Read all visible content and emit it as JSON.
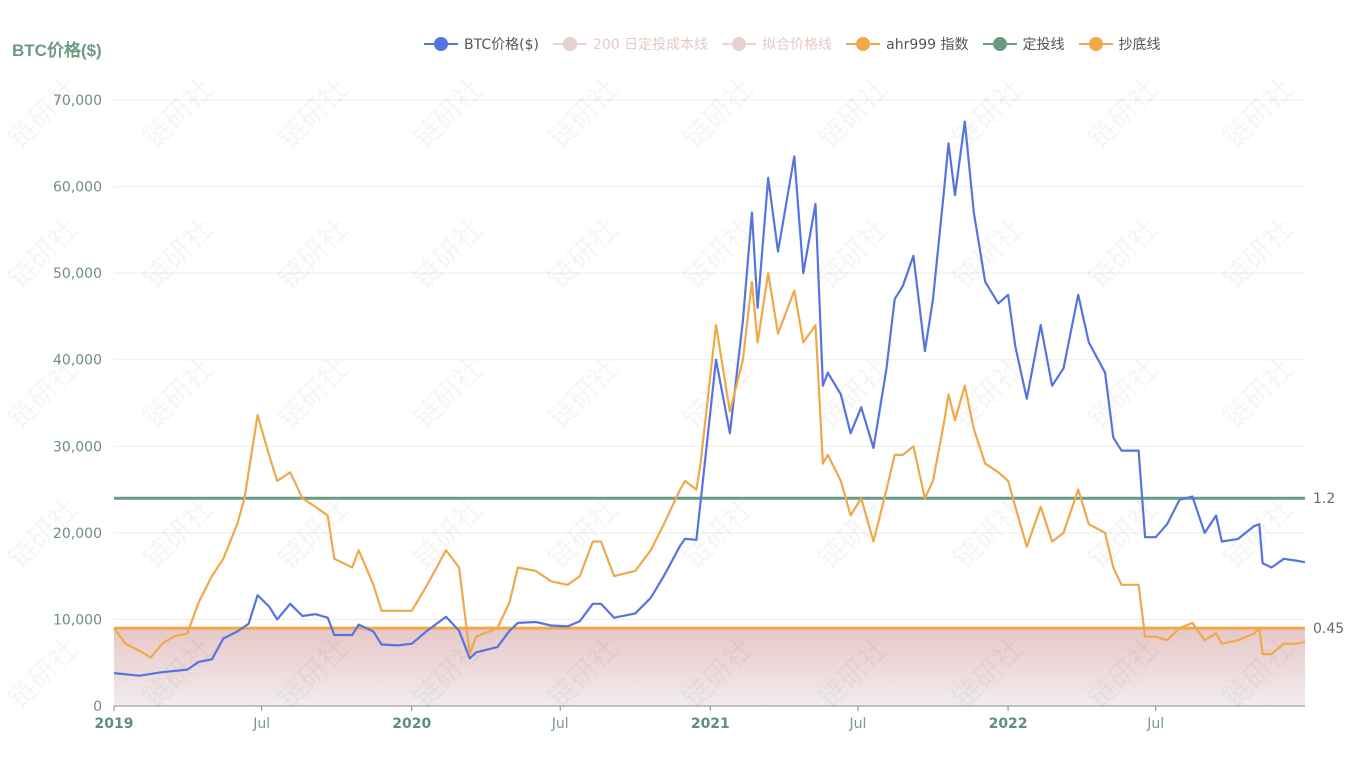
{
  "chart_data": {
    "type": "line",
    "y_axis_title": "BTC价格($)",
    "watermark_text": "链研社",
    "legend": [
      {
        "label": "BTC价格($)",
        "color": "#5574e0",
        "faded": false
      },
      {
        "label": "200 日定投成本线",
        "color": "#e8c7c7",
        "faded": true
      },
      {
        "label": "拟合价格线",
        "color": "#e8c7c7",
        "faded": true
      },
      {
        "label": "ahr999 指数",
        "color": "#f0a94a",
        "faded": false
      },
      {
        "label": "定投线",
        "color": "#6a9a84",
        "faded": false
      },
      {
        "label": "抄底线",
        "color": "#f0a94a",
        "faded": false
      }
    ],
    "x_range": [
      "2019-01-01",
      "2022-12-31"
    ],
    "ylim": [
      0,
      70000
    ],
    "y_ticks": [
      {
        "value": 0,
        "label": "0"
      },
      {
        "value": 10000,
        "label": "10,000"
      },
      {
        "value": 20000,
        "label": "20,000"
      },
      {
        "value": 30000,
        "label": "30,000"
      },
      {
        "value": 40000,
        "label": "40,000"
      },
      {
        "value": 50000,
        "label": "50,000"
      },
      {
        "value": 60000,
        "label": "60,000"
      },
      {
        "value": 70000,
        "label": "70,000"
      }
    ],
    "x_ticks": [
      {
        "date": "2019-01-01",
        "label": "2019",
        "major": true
      },
      {
        "date": "2019-07-01",
        "label": "Jul",
        "major": false
      },
      {
        "date": "2020-01-01",
        "label": "2020",
        "major": true
      },
      {
        "date": "2020-07-01",
        "label": "Jul",
        "major": false
      },
      {
        "date": "2021-01-01",
        "label": "2021",
        "major": true
      },
      {
        "date": "2021-07-01",
        "label": "Jul",
        "major": false
      },
      {
        "date": "2022-01-01",
        "label": "2022",
        "major": true
      },
      {
        "date": "2022-07-01",
        "label": "Jul",
        "major": false
      }
    ],
    "grid": true,
    "series": [
      {
        "name": "BTC价格($)",
        "color": "#5574e0",
        "points": [
          [
            "2019-01-01",
            3800
          ],
          [
            "2019-02-01",
            3500
          ],
          [
            "2019-03-01",
            3900
          ],
          [
            "2019-04-01",
            4200
          ],
          [
            "2019-04-15",
            5100
          ],
          [
            "2019-05-01",
            5400
          ],
          [
            "2019-05-15",
            7800
          ],
          [
            "2019-06-01",
            8600
          ],
          [
            "2019-06-15",
            9500
          ],
          [
            "2019-06-26",
            12800
          ],
          [
            "2019-07-10",
            11500
          ],
          [
            "2019-07-20",
            10000
          ],
          [
            "2019-08-05",
            11800
          ],
          [
            "2019-08-20",
            10400
          ],
          [
            "2019-09-05",
            10600
          ],
          [
            "2019-09-20",
            10200
          ],
          [
            "2019-09-28",
            8200
          ],
          [
            "2019-10-20",
            8200
          ],
          [
            "2019-10-28",
            9400
          ],
          [
            "2019-11-15",
            8600
          ],
          [
            "2019-11-25",
            7100
          ],
          [
            "2019-12-15",
            7000
          ],
          [
            "2020-01-01",
            7200
          ],
          [
            "2020-01-20",
            8700
          ],
          [
            "2020-02-12",
            10300
          ],
          [
            "2020-02-28",
            8700
          ],
          [
            "2020-03-12",
            5500
          ],
          [
            "2020-03-20",
            6200
          ],
          [
            "2020-04-15",
            6800
          ],
          [
            "2020-04-30",
            8700
          ],
          [
            "2020-05-10",
            9600
          ],
          [
            "2020-06-01",
            9700
          ],
          [
            "2020-06-20",
            9300
          ],
          [
            "2020-07-10",
            9200
          ],
          [
            "2020-07-25",
            9800
          ],
          [
            "2020-08-10",
            11800
          ],
          [
            "2020-08-20",
            11800
          ],
          [
            "2020-09-05",
            10200
          ],
          [
            "2020-10-01",
            10700
          ],
          [
            "2020-10-20",
            12500
          ],
          [
            "2020-11-05",
            15000
          ],
          [
            "2020-11-25",
            18500
          ],
          [
            "2020-12-01",
            19300
          ],
          [
            "2020-12-15",
            19200
          ],
          [
            "2020-12-20",
            23500
          ],
          [
            "2021-01-08",
            40000
          ],
          [
            "2021-01-25",
            31500
          ],
          [
            "2021-02-10",
            44500
          ],
          [
            "2021-02-21",
            57000
          ],
          [
            "2021-02-28",
            46000
          ],
          [
            "2021-03-13",
            61000
          ],
          [
            "2021-03-25",
            52500
          ],
          [
            "2021-04-14",
            63500
          ],
          [
            "2021-04-25",
            50000
          ],
          [
            "2021-05-10",
            58000
          ],
          [
            "2021-05-19",
            37000
          ],
          [
            "2021-05-25",
            38500
          ],
          [
            "2021-06-10",
            36000
          ],
          [
            "2021-06-22",
            31500
          ],
          [
            "2021-07-05",
            34500
          ],
          [
            "2021-07-20",
            29800
          ],
          [
            "2021-08-05",
            39000
          ],
          [
            "2021-08-15",
            47000
          ],
          [
            "2021-08-25",
            48500
          ],
          [
            "2021-09-07",
            52000
          ],
          [
            "2021-09-21",
            41000
          ],
          [
            "2021-10-01",
            47000
          ],
          [
            "2021-10-15",
            60000
          ],
          [
            "2021-10-20",
            65000
          ],
          [
            "2021-10-28",
            59000
          ],
          [
            "2021-11-09",
            67500
          ],
          [
            "2021-11-20",
            57000
          ],
          [
            "2021-12-04",
            49000
          ],
          [
            "2021-12-20",
            46500
          ],
          [
            "2022-01-01",
            47500
          ],
          [
            "2022-01-10",
            41500
          ],
          [
            "2022-01-24",
            35500
          ],
          [
            "2022-02-10",
            44000
          ],
          [
            "2022-02-24",
            37000
          ],
          [
            "2022-03-10",
            39000
          ],
          [
            "2022-03-28",
            47500
          ],
          [
            "2022-04-10",
            42000
          ],
          [
            "2022-04-30",
            38500
          ],
          [
            "2022-05-10",
            31000
          ],
          [
            "2022-05-20",
            29500
          ],
          [
            "2022-06-10",
            29500
          ],
          [
            "2022-06-18",
            19500
          ],
          [
            "2022-07-01",
            19500
          ],
          [
            "2022-07-15",
            21000
          ],
          [
            "2022-07-30",
            23800
          ],
          [
            "2022-08-15",
            24200
          ],
          [
            "2022-08-30",
            20000
          ],
          [
            "2022-09-13",
            22000
          ],
          [
            "2022-09-20",
            19000
          ],
          [
            "2022-10-10",
            19300
          ],
          [
            "2022-10-30",
            20800
          ],
          [
            "2022-11-05",
            21000
          ],
          [
            "2022-11-09",
            16500
          ],
          [
            "2022-11-20",
            16000
          ],
          [
            "2022-12-05",
            17000
          ],
          [
            "2022-12-20",
            16800
          ],
          [
            "2022-12-31",
            16600
          ]
        ]
      },
      {
        "name": "ahr999 指数",
        "color": "#f0a94a",
        "points": [
          [
            "2019-01-01",
            0.45
          ],
          [
            "2019-01-15",
            0.36
          ],
          [
            "2019-02-01",
            0.32
          ],
          [
            "2019-02-15",
            0.28
          ],
          [
            "2019-03-01",
            0.36
          ],
          [
            "2019-03-15",
            0.4
          ],
          [
            "2019-04-01",
            0.42
          ],
          [
            "2019-04-15",
            0.6
          ],
          [
            "2019-05-01",
            0.75
          ],
          [
            "2019-05-15",
            0.85
          ],
          [
            "2019-06-01",
            1.05
          ],
          [
            "2019-06-10",
            1.2
          ],
          [
            "2019-06-26",
            1.68
          ],
          [
            "2019-07-10",
            1.45
          ],
          [
            "2019-07-20",
            1.3
          ],
          [
            "2019-08-05",
            1.35
          ],
          [
            "2019-08-20",
            1.2
          ],
          [
            "2019-09-05",
            1.15
          ],
          [
            "2019-09-20",
            1.1
          ],
          [
            "2019-09-28",
            0.85
          ],
          [
            "2019-10-20",
            0.8
          ],
          [
            "2019-10-28",
            0.9
          ],
          [
            "2019-11-15",
            0.7
          ],
          [
            "2019-11-25",
            0.55
          ],
          [
            "2019-12-15",
            0.55
          ],
          [
            "2020-01-01",
            0.55
          ],
          [
            "2020-01-20",
            0.7
          ],
          [
            "2020-02-12",
            0.9
          ],
          [
            "2020-02-28",
            0.8
          ],
          [
            "2020-03-12",
            0.3
          ],
          [
            "2020-03-20",
            0.4
          ],
          [
            "2020-04-15",
            0.45
          ],
          [
            "2020-04-30",
            0.6
          ],
          [
            "2020-05-10",
            0.8
          ],
          [
            "2020-06-01",
            0.78
          ],
          [
            "2020-06-20",
            0.72
          ],
          [
            "2020-07-10",
            0.7
          ],
          [
            "2020-07-25",
            0.75
          ],
          [
            "2020-08-10",
            0.95
          ],
          [
            "2020-08-20",
            0.95
          ],
          [
            "2020-09-05",
            0.75
          ],
          [
            "2020-10-01",
            0.78
          ],
          [
            "2020-10-20",
            0.9
          ],
          [
            "2020-11-05",
            1.05
          ],
          [
            "2020-11-25",
            1.25
          ],
          [
            "2020-12-01",
            1.3
          ],
          [
            "2020-12-15",
            1.25
          ],
          [
            "2020-12-20",
            1.4
          ],
          [
            "2021-01-08",
            2.2
          ],
          [
            "2021-01-25",
            1.7
          ],
          [
            "2021-02-10",
            2.0
          ],
          [
            "2021-02-21",
            2.45
          ],
          [
            "2021-02-28",
            2.1
          ],
          [
            "2021-03-13",
            2.5
          ],
          [
            "2021-03-25",
            2.15
          ],
          [
            "2021-04-14",
            2.4
          ],
          [
            "2021-04-25",
            2.1
          ],
          [
            "2021-05-10",
            2.2
          ],
          [
            "2021-05-19",
            1.4
          ],
          [
            "2021-05-25",
            1.45
          ],
          [
            "2021-06-10",
            1.3
          ],
          [
            "2021-06-22",
            1.1
          ],
          [
            "2021-07-05",
            1.2
          ],
          [
            "2021-07-20",
            0.95
          ],
          [
            "2021-08-05",
            1.25
          ],
          [
            "2021-08-15",
            1.45
          ],
          [
            "2021-08-25",
            1.45
          ],
          [
            "2021-09-07",
            1.5
          ],
          [
            "2021-09-21",
            1.2
          ],
          [
            "2021-10-01",
            1.3
          ],
          [
            "2021-10-15",
            1.65
          ],
          [
            "2021-10-20",
            1.8
          ],
          [
            "2021-10-28",
            1.65
          ],
          [
            "2021-11-09",
            1.85
          ],
          [
            "2021-11-20",
            1.6
          ],
          [
            "2021-12-04",
            1.4
          ],
          [
            "2021-12-20",
            1.35
          ],
          [
            "2022-01-01",
            1.3
          ],
          [
            "2022-01-10",
            1.15
          ],
          [
            "2022-01-24",
            0.92
          ],
          [
            "2022-02-10",
            1.15
          ],
          [
            "2022-02-24",
            0.95
          ],
          [
            "2022-03-10",
            1.0
          ],
          [
            "2022-03-28",
            1.25
          ],
          [
            "2022-04-10",
            1.05
          ],
          [
            "2022-04-30",
            1.0
          ],
          [
            "2022-05-10",
            0.8
          ],
          [
            "2022-05-20",
            0.7
          ],
          [
            "2022-06-10",
            0.7
          ],
          [
            "2022-06-18",
            0.4
          ],
          [
            "2022-07-01",
            0.4
          ],
          [
            "2022-07-15",
            0.38
          ],
          [
            "2022-07-30",
            0.45
          ],
          [
            "2022-08-15",
            0.48
          ],
          [
            "2022-08-30",
            0.38
          ],
          [
            "2022-09-13",
            0.42
          ],
          [
            "2022-09-20",
            0.36
          ],
          [
            "2022-10-10",
            0.38
          ],
          [
            "2022-10-30",
            0.42
          ],
          [
            "2022-11-05",
            0.45
          ],
          [
            "2022-11-09",
            0.3
          ],
          [
            "2022-11-20",
            0.3
          ],
          [
            "2022-12-05",
            0.36
          ],
          [
            "2022-12-20",
            0.36
          ],
          [
            "2022-12-31",
            0.37
          ]
        ]
      }
    ],
    "reference_lines": [
      {
        "name": "定投线",
        "value": 1.2,
        "label": "1.2",
        "color": "#6a9a84"
      },
      {
        "name": "抄底线",
        "value": 0.45,
        "label": "0.45",
        "color": "#f0a94a"
      }
    ],
    "shaded_region": {
      "from": 0,
      "to": 0.45,
      "color_top": "#e7c7c7",
      "color_bottom": "#f1ecee"
    }
  }
}
